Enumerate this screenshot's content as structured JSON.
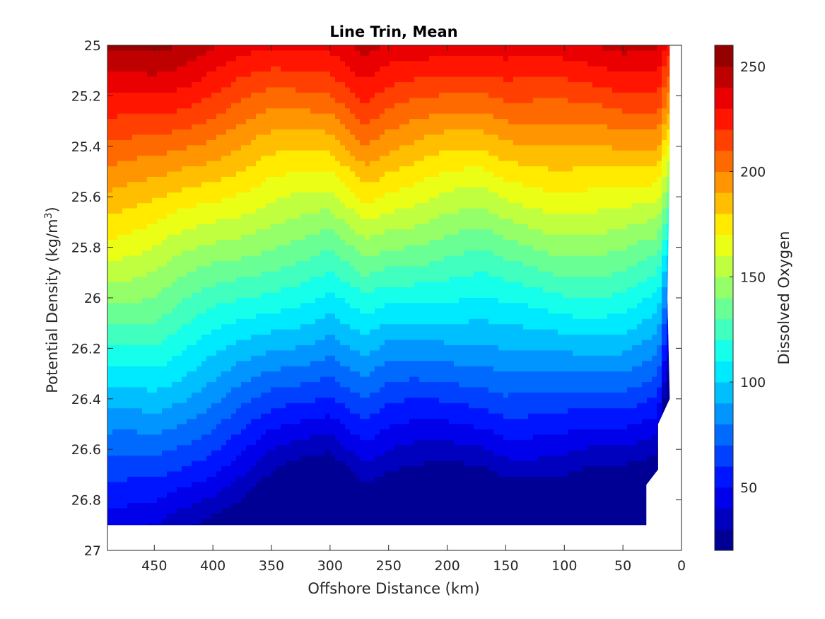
{
  "chart_data": {
    "type": "contour",
    "title": "Line Trin, Mean",
    "xlabel": "Offshore Distance (km)",
    "ylabel": "Potential Density (kg/m",
    "ylabel_superscript": "3",
    "ylabel_suffix": ")",
    "colorbar_label": "Dissolved Oxygen",
    "x_axis": {
      "range": [
        490,
        0
      ],
      "reversed": true,
      "ticks": [
        450,
        400,
        350,
        300,
        250,
        200,
        150,
        100,
        50,
        0
      ]
    },
    "y_axis": {
      "range": [
        25,
        27
      ],
      "reversed": true,
      "ticks": [
        "25",
        "25.2",
        "25.4",
        "25.6",
        "25.8",
        "26",
        "26.2",
        "26.4",
        "26.6",
        "26.8",
        "27"
      ]
    },
    "colorbar": {
      "range": [
        20,
        260
      ],
      "ticks": [
        50,
        100,
        150,
        200,
        250
      ],
      "step": 10
    },
    "data_extent": {
      "x_offshore_edge": 490,
      "bottom_density": 26.9
    },
    "surface": {
      "x": [
        490,
        450,
        400,
        350,
        300,
        270,
        250,
        200,
        170,
        150,
        100,
        50,
        20,
        12
      ],
      "oxygen_at_25": [
        252,
        250,
        242,
        234,
        232,
        246,
        240,
        234,
        232,
        236,
        240,
        242,
        240,
        226
      ],
      "oxygen_gradient_per_0p1_sigma": [
        -11,
        -11,
        -11.5,
        -12,
        -12.5,
        -12.5,
        -12.5,
        -12.3,
        -12.2,
        -12.2,
        -12.3,
        -12.6,
        -13,
        -15
      ]
    },
    "levels_min": 20,
    "levels_max": 260,
    "grid": false
  }
}
